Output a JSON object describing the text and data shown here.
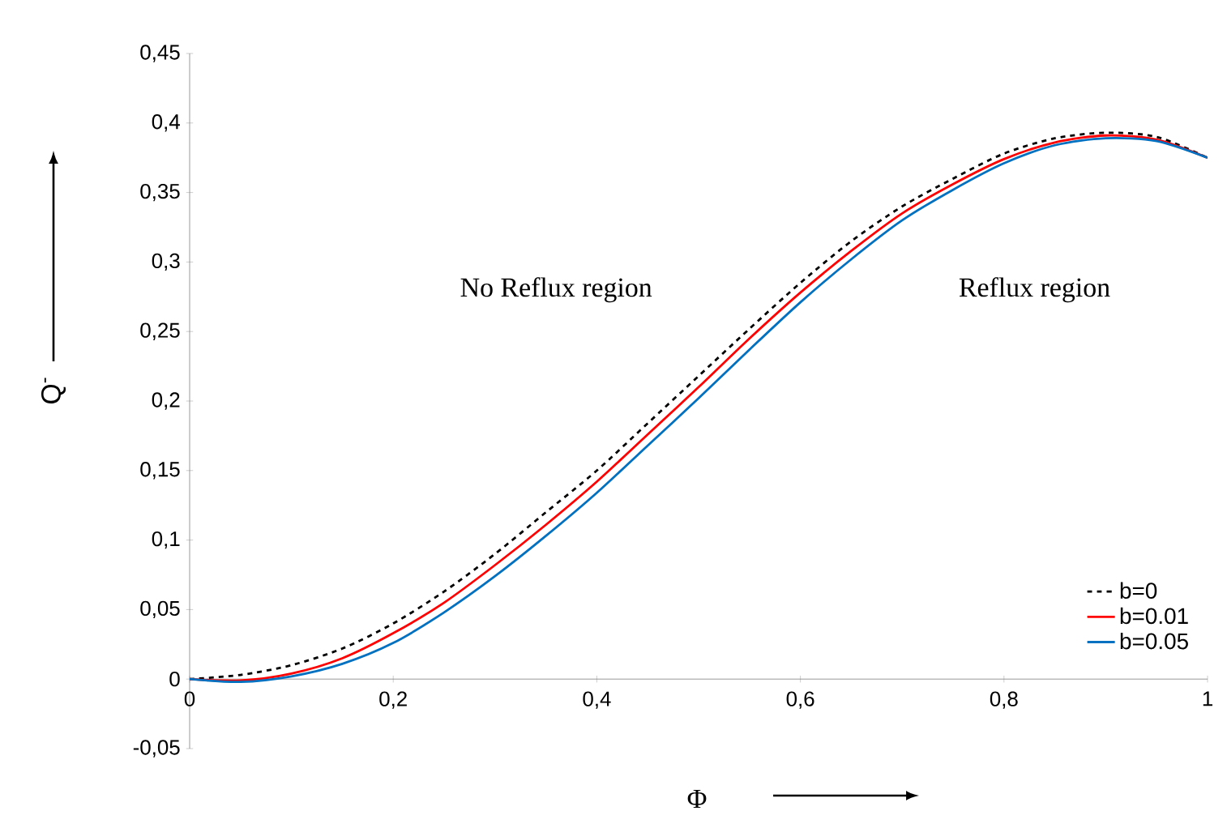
{
  "chart_data": {
    "type": "line",
    "xlabel": "Φ",
    "ylabel": "Q$^{-}$",
    "annotations": [
      "No Reflux region",
      "Reflux region"
    ],
    "x": [
      0,
      0.05,
      0.1,
      0.15,
      0.2,
      0.25,
      0.3,
      0.35,
      0.4,
      0.45,
      0.5,
      0.55,
      0.6,
      0.65,
      0.7,
      0.75,
      0.8,
      0.85,
      0.9,
      0.95,
      1
    ],
    "series": [
      {
        "name": "b=0",
        "color": "#000000",
        "line_style": "dashed",
        "values": [
          0,
          0.003,
          0.01,
          0.022,
          0.04,
          0.063,
          0.09,
          0.12,
          0.15,
          0.184,
          0.218,
          0.252,
          0.285,
          0.315,
          0.34,
          0.36,
          0.378,
          0.389,
          0.393,
          0.39,
          0.375
        ]
      },
      {
        "name": "b=0.01",
        "color": "#ff0000",
        "line_style": "solid",
        "values": [
          0,
          -0.001,
          0.004,
          0.015,
          0.033,
          0.055,
          0.082,
          0.111,
          0.142,
          0.176,
          0.21,
          0.245,
          0.278,
          0.308,
          0.335,
          0.356,
          0.374,
          0.386,
          0.391,
          0.388,
          0.375
        ]
      },
      {
        "name": "b=0.05",
        "color": "#0070c0",
        "line_style": "solid",
        "values": [
          0,
          -0.002,
          0.002,
          0.011,
          0.026,
          0.048,
          0.074,
          0.103,
          0.134,
          0.168,
          0.202,
          0.237,
          0.271,
          0.302,
          0.33,
          0.352,
          0.371,
          0.384,
          0.389,
          0.387,
          0.375
        ]
      }
    ],
    "xlim": [
      0,
      1
    ],
    "ylim": [
      -0.05,
      0.45
    ],
    "xticks": [
      0,
      {
        "value": 0.2,
        "label": "0,2"
      },
      {
        "value": 0.4,
        "label": "0,4"
      },
      {
        "value": 0.6,
        "label": "0,6"
      },
      {
        "value": 0.8,
        "label": "0,8"
      },
      1
    ],
    "yticks": [
      {
        "value": -0.05,
        "label": "-0,05"
      },
      0,
      {
        "value": 0.05,
        "label": "0,05"
      },
      {
        "value": 0.1,
        "label": "0,1"
      },
      {
        "value": 0.15,
        "label": "0,15"
      },
      {
        "value": 0.2,
        "label": "0,2"
      },
      {
        "value": 0.25,
        "label": "0,25"
      },
      {
        "value": 0.3,
        "label": "0,3"
      },
      {
        "value": 0.35,
        "label": "0,35"
      },
      {
        "value": 0.4,
        "label": "0,4"
      },
      {
        "value": 0.45,
        "label": "0,45"
      }
    ],
    "legend": "bottom right",
    "grid": false
  }
}
